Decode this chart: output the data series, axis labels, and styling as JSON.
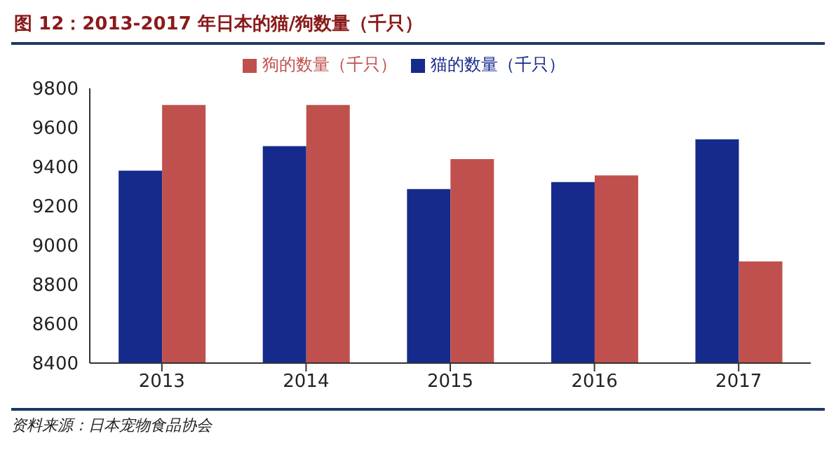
{
  "chart_data": {
    "type": "bar",
    "title": "图 12：2013-2017 年日本的猫/狗数量（千只）",
    "categories": [
      "2013",
      "2014",
      "2015",
      "2016",
      "2017"
    ],
    "series": [
      {
        "name": "猫的数量（千只）",
        "color": "#162a8c",
        "values": [
          9380,
          9505,
          9287,
          9322,
          9540
        ]
      },
      {
        "name": "狗的数量（千只）",
        "color": "#c0504d",
        "values": [
          9715,
          9715,
          9439,
          9356,
          8918
        ]
      }
    ],
    "ylim": [
      8400,
      9800
    ],
    "yticks": [
      8400,
      8600,
      8800,
      9000,
      9200,
      9400,
      9600,
      9800
    ],
    "grid": false,
    "legend": "top",
    "annotations": [
      "资料来源：日本宠物食品协会"
    ]
  }
}
